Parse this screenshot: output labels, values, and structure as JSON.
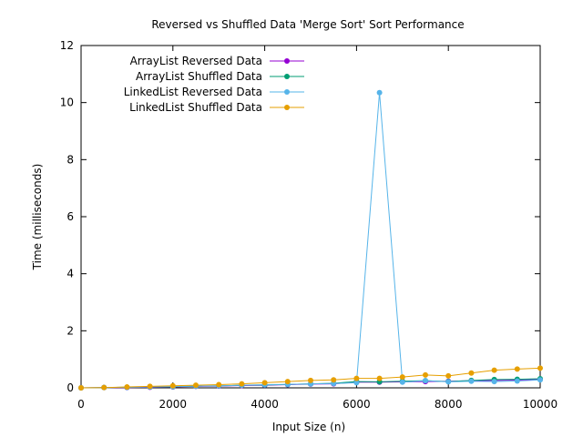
{
  "chart_data": {
    "type": "line",
    "title": "Reversed vs Shuffled Data 'Merge Sort' Sort Performance",
    "xlabel": "Input Size (n)",
    "ylabel": "Time (milliseconds)",
    "xlim": [
      0,
      10000
    ],
    "ylim": [
      0,
      12
    ],
    "xticks": [
      0,
      2000,
      4000,
      6000,
      8000,
      10000
    ],
    "yticks": [
      0,
      2,
      4,
      6,
      8,
      10,
      12
    ],
    "grid": false,
    "legend_position": "top-left",
    "x": [
      0,
      500,
      1000,
      1500,
      2000,
      2500,
      3000,
      3500,
      4000,
      4500,
      5000,
      5500,
      6000,
      6500,
      7000,
      7500,
      8000,
      8500,
      9000,
      9500,
      10000
    ],
    "series": [
      {
        "name": "ArrayList Reversed Data",
        "color": "#9400d3",
        "values": [
          0,
          0.01,
          0.01,
          0.02,
          0.03,
          0.05,
          0.06,
          0.08,
          0.09,
          0.11,
          0.13,
          0.14,
          0.2,
          0.2,
          0.21,
          0.22,
          0.23,
          0.25,
          0.26,
          0.27,
          0.3
        ]
      },
      {
        "name": "ArrayList Shuffled Data",
        "color": "#009e73",
        "values": [
          0,
          0.01,
          0.02,
          0.03,
          0.04,
          0.06,
          0.07,
          0.09,
          0.1,
          0.12,
          0.14,
          0.16,
          0.22,
          0.21,
          0.23,
          0.25,
          0.22,
          0.26,
          0.29,
          0.3,
          0.32
        ]
      },
      {
        "name": "LinkedList Reversed Data",
        "color": "#56b4e9",
        "values": [
          0,
          0.01,
          0.02,
          0.03,
          0.04,
          0.06,
          0.07,
          0.09,
          0.11,
          0.12,
          0.14,
          0.15,
          0.18,
          10.35,
          0.2,
          0.25,
          0.21,
          0.23,
          0.22,
          0.24,
          0.28
        ]
      },
      {
        "name": "LinkedList Shuffled Data",
        "color": "#e69f00",
        "values": [
          0,
          0.01,
          0.03,
          0.05,
          0.07,
          0.09,
          0.11,
          0.14,
          0.18,
          0.22,
          0.26,
          0.28,
          0.33,
          0.33,
          0.38,
          0.45,
          0.42,
          0.52,
          0.62,
          0.66,
          0.69
        ]
      }
    ]
  }
}
